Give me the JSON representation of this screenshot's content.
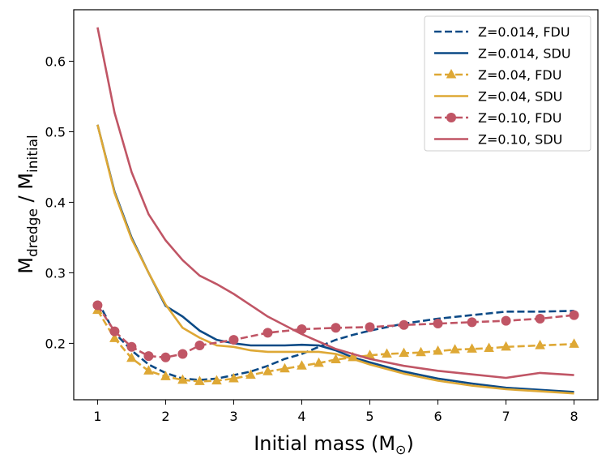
{
  "chart_data": {
    "type": "line",
    "xlabel": "Initial mass (M",
    "xlabel_sub": "⊙",
    "xlabel_close": ")",
    "ylabel_main1": "M",
    "ylabel_sub1": "dredge",
    "ylabel_slash": " / M",
    "ylabel_sub2": "initial",
    "xlim": [
      0.65,
      8.35
    ],
    "ylim": [
      0.12,
      0.673
    ],
    "xticks": [
      1,
      2,
      3,
      4,
      5,
      6,
      7,
      8
    ],
    "yticks": [
      0.2,
      0.3,
      0.4,
      0.5,
      0.6
    ],
    "xtick_labels": [
      "1",
      "2",
      "3",
      "4",
      "5",
      "6",
      "7",
      "8"
    ],
    "ytick_labels": [
      "0.2",
      "0.3",
      "0.4",
      "0.5",
      "0.6"
    ],
    "legend_position": "top-right",
    "series": [
      {
        "name": "Z=0.014, FDU",
        "color": "#0c4a86",
        "style": "dashed",
        "marker": "none",
        "x": [
          1.0,
          1.25,
          1.5,
          1.75,
          2.0,
          2.25,
          2.5,
          2.75,
          3.0,
          3.25,
          3.5,
          3.75,
          4.0,
          4.25,
          4.5,
          4.75,
          5.0,
          5.5,
          6.0,
          6.5,
          7.0,
          7.5,
          8.0
        ],
        "y": [
          0.26,
          0.215,
          0.19,
          0.17,
          0.158,
          0.15,
          0.148,
          0.15,
          0.155,
          0.16,
          0.168,
          0.178,
          0.185,
          0.195,
          0.205,
          0.212,
          0.218,
          0.228,
          0.235,
          0.24,
          0.245,
          0.245,
          0.246
        ]
      },
      {
        "name": "Z=0.014, SDU",
        "color": "#0c4a86",
        "style": "solid",
        "marker": "none",
        "x": [
          1.0,
          1.25,
          1.5,
          1.75,
          2.0,
          2.25,
          2.5,
          2.75,
          3.0,
          3.25,
          3.5,
          3.75,
          4.0,
          4.25,
          4.5,
          4.75,
          5.0,
          5.5,
          6.0,
          6.5,
          7.0,
          7.5,
          8.0
        ],
        "y": [
          0.51,
          0.415,
          0.35,
          0.3,
          0.253,
          0.238,
          0.218,
          0.205,
          0.2,
          0.197,
          0.197,
          0.197,
          0.198,
          0.197,
          0.19,
          0.18,
          0.173,
          0.16,
          0.15,
          0.143,
          0.137,
          0.134,
          0.131
        ]
      },
      {
        "name": "Z=0.04, FDU",
        "color": "#dea835",
        "style": "dashed",
        "marker": "triangle",
        "x": [
          1.0,
          1.25,
          1.5,
          1.75,
          2.0,
          2.25,
          2.5,
          2.75,
          3.0,
          3.25,
          3.5,
          3.75,
          4.0,
          4.25,
          4.5,
          4.75,
          5.0,
          5.25,
          5.5,
          5.75,
          6.0,
          6.25,
          6.5,
          6.75,
          7.0,
          7.5,
          8.0
        ],
        "y": [
          0.247,
          0.207,
          0.179,
          0.161,
          0.153,
          0.148,
          0.146,
          0.147,
          0.15,
          0.155,
          0.16,
          0.164,
          0.168,
          0.172,
          0.177,
          0.18,
          0.183,
          0.185,
          0.186,
          0.187,
          0.189,
          0.191,
          0.192,
          0.193,
          0.195,
          0.197,
          0.199
        ]
      },
      {
        "name": "Z=0.04, SDU",
        "color": "#dea835",
        "style": "solid",
        "marker": "none",
        "x": [
          1.0,
          1.25,
          1.5,
          1.75,
          2.0,
          2.25,
          2.5,
          2.75,
          3.0,
          3.25,
          3.5,
          3.75,
          4.0,
          4.25,
          4.5,
          4.75,
          5.0,
          5.5,
          6.0,
          6.5,
          7.0,
          7.5,
          8.0
        ],
        "y": [
          0.51,
          0.413,
          0.348,
          0.3,
          0.255,
          0.222,
          0.208,
          0.197,
          0.195,
          0.19,
          0.188,
          0.188,
          0.188,
          0.188,
          0.185,
          0.178,
          0.17,
          0.157,
          0.147,
          0.14,
          0.135,
          0.132,
          0.129
        ]
      },
      {
        "name": "Z=0.10, FDU",
        "color": "#c05565",
        "style": "dashed",
        "marker": "circle",
        "x": [
          1.0,
          1.25,
          1.5,
          1.75,
          2.0,
          2.25,
          2.5,
          3.0,
          3.5,
          4.0,
          4.5,
          5.0,
          5.5,
          6.0,
          6.5,
          7.0,
          7.5,
          8.0
        ],
        "y": [
          0.254,
          0.217,
          0.195,
          0.182,
          0.18,
          0.185,
          0.197,
          0.205,
          0.215,
          0.22,
          0.222,
          0.223,
          0.226,
          0.228,
          0.23,
          0.232,
          0.235,
          0.24
        ]
      },
      {
        "name": "Z=0.10, SDU",
        "color": "#c05565",
        "style": "solid",
        "marker": "none",
        "x": [
          1.0,
          1.25,
          1.5,
          1.75,
          2.0,
          2.25,
          2.5,
          2.75,
          3.0,
          3.25,
          3.5,
          4.0,
          4.5,
          5.0,
          5.5,
          6.0,
          6.5,
          7.0,
          7.5,
          8.0
        ],
        "y": [
          0.648,
          0.527,
          0.443,
          0.383,
          0.346,
          0.318,
          0.296,
          0.284,
          0.27,
          0.254,
          0.238,
          0.213,
          0.192,
          0.178,
          0.168,
          0.161,
          0.156,
          0.151,
          0.158,
          0.155
        ]
      }
    ]
  }
}
